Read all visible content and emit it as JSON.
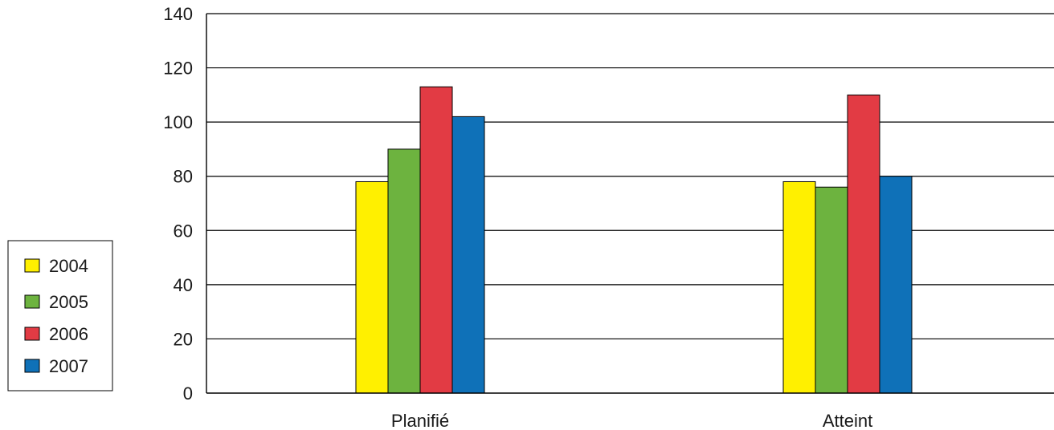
{
  "chart_data": {
    "type": "bar",
    "categories": [
      "Planifié",
      "Atteint"
    ],
    "series": [
      {
        "name": "2004",
        "color": "#FFF000",
        "values": [
          78,
          78
        ]
      },
      {
        "name": "2005",
        "color": "#6DB33F",
        "values": [
          90,
          76
        ]
      },
      {
        "name": "2006",
        "color": "#E23B44",
        "values": [
          113,
          110
        ]
      },
      {
        "name": "2007",
        "color": "#0F71B8",
        "values": [
          102,
          80
        ]
      }
    ],
    "yticks": [
      "0",
      "20",
      "40",
      "60",
      "80",
      "100",
      "120",
      "140"
    ],
    "ylim": [
      0,
      140
    ],
    "grid": true,
    "legend_position": "left"
  }
}
